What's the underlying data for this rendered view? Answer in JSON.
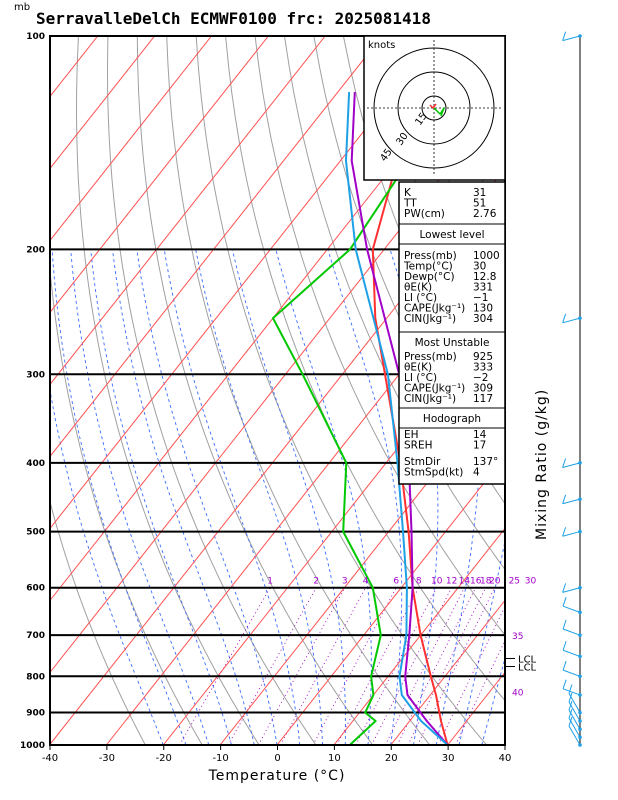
{
  "header": {
    "title": "SerravalleDelCh  ECMWF0100  frc: 2025081418",
    "pressure_unit": "mb"
  },
  "chart_data": {
    "type": "line",
    "subtype": "skew-T log-p sounding",
    "xlabel": "Temperature (°C)",
    "ylabel_right": "Mixing Ratio (g/kg)",
    "x_ticks": [
      -40,
      -30,
      -20,
      -10,
      0,
      10,
      20,
      30,
      40
    ],
    "pressure_levels": [
      1000,
      900,
      800,
      700,
      600,
      500,
      400,
      300,
      200,
      100
    ],
    "mixing_ratio_labels": [
      {
        "label": "1",
        "w": 1
      },
      {
        "label": "2",
        "w": 2
      },
      {
        "label": "3",
        "w": 3
      },
      {
        "label": "4",
        "w": 4
      },
      {
        "label": "6",
        "w": 6
      },
      {
        "label": "8",
        "w": 8
      },
      {
        "label": "10",
        "w": 10
      },
      {
        "label": "12",
        "w": 12
      },
      {
        "label": "14",
        "w": 14
      },
      {
        "label": "16",
        "w": 16
      },
      {
        "label": "18",
        "w": 18
      },
      {
        "label": "20",
        "w": 20
      },
      {
        "label": "25",
        "w": 25
      },
      {
        "label": "30",
        "w": 30
      }
    ],
    "theta_e_labels": [
      "35",
      "40"
    ],
    "lcl_labels": [
      "LCL",
      "LCL"
    ],
    "series": [
      {
        "name": "",
        "role": "temperature",
        "color": "#ff3030",
        "p": [
          1000,
          925,
          850,
          800,
          700,
          600,
          500,
          400,
          300,
          250,
          200,
          150,
          100
        ],
        "t": [
          30,
          25.5,
          21,
          17.5,
          10,
          2,
          -6.5,
          -17.5,
          -32.5,
          -42,
          -52,
          -60,
          -68
        ]
      },
      {
        "name": "",
        "role": "dewpoint",
        "color": "#00c800",
        "p": [
          1000,
          925,
          900,
          850,
          800,
          700,
          600,
          500,
          400,
          300,
          250,
          200,
          150,
          100
        ],
        "t": [
          12.8,
          14,
          11,
          10,
          7,
          3,
          -5,
          -18,
          -27,
          -47,
          -60,
          -56,
          -58,
          -62
        ]
      },
      {
        "name": "",
        "role": "parcel",
        "color": "#a000c8",
        "p": [
          1000,
          925,
          850,
          800,
          700,
          600,
          500,
          400,
          300,
          200,
          150,
          120
        ],
        "t": [
          30,
          23,
          16,
          13,
          8,
          2,
          -6,
          -16,
          -30,
          -53,
          -68,
          -77
        ]
      },
      {
        "name": "",
        "role": "virtual",
        "color": "#1ea0e6",
        "p": [
          1000,
          925,
          850,
          800,
          700,
          600,
          500,
          400,
          300,
          200,
          150,
          120
        ],
        "t": [
          30,
          22,
          15,
          12,
          7.5,
          1,
          -7.5,
          -18,
          -32,
          -55,
          -69,
          -78
        ]
      }
    ],
    "hodograph": {
      "unit_label": "knots",
      "ring_labels": [
        "15",
        "30",
        "45"
      ]
    }
  },
  "indices": {
    "top": [
      [
        "K",
        "31"
      ],
      [
        "TT",
        "51"
      ],
      [
        "PW(cm)",
        "2.76"
      ]
    ],
    "lowest_title": "Lowest level",
    "lowest": [
      [
        "Press(mb)",
        "1000"
      ],
      [
        "Temp(°C)",
        "30"
      ],
      [
        "Dewp(°C)",
        "12.8"
      ],
      [
        "θE(K)",
        "331"
      ],
      [
        "LI  (°C)",
        "−1"
      ],
      [
        "CAPE(Jkg⁻¹)",
        "130"
      ],
      [
        "CIN(Jkg⁻¹)",
        "304"
      ]
    ],
    "unstable_title": "Most Unstable",
    "unstable": [
      [
        "Press(mb)",
        "925"
      ],
      [
        "θE(K)",
        "333"
      ],
      [
        "LI  (°C)",
        "−2"
      ],
      [
        "CAPE(Jkg⁻¹)",
        "309"
      ],
      [
        "CIN(Jkg⁻¹)",
        "117"
      ]
    ],
    "hodo_title": "Hodograph",
    "hodo": [
      [
        "EH",
        "14"
      ],
      [
        "SREH",
        "17"
      ],
      [
        "StmDir",
        "137°"
      ],
      [
        "StmSpd(kt)",
        "4"
      ]
    ]
  },
  "colors": {
    "temperature": "#ff3030",
    "dewpoint": "#00c800",
    "parcel": "#a000c8",
    "virtual": "#1ea0e6",
    "isotherm": "#ff5050",
    "dry_adiabat": "#a0a0a0",
    "moist_adiabat": "#3c6cff",
    "mixing_ratio": "#a000c8",
    "wind": "#1ea0e6"
  }
}
